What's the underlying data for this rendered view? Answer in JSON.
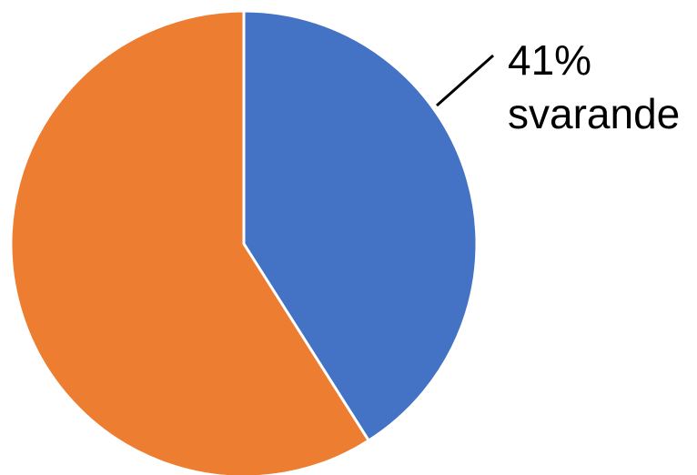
{
  "chart_data": {
    "type": "pie",
    "title": "",
    "slices": [
      {
        "value": 41,
        "color": "#4472C4",
        "label_value": "41%",
        "label_text": "svarande"
      },
      {
        "value": 59,
        "color": "#ED7D31"
      }
    ],
    "legend": "none",
    "slice_border_color": "#FFFFFF",
    "leader_line_color": "#000000"
  }
}
